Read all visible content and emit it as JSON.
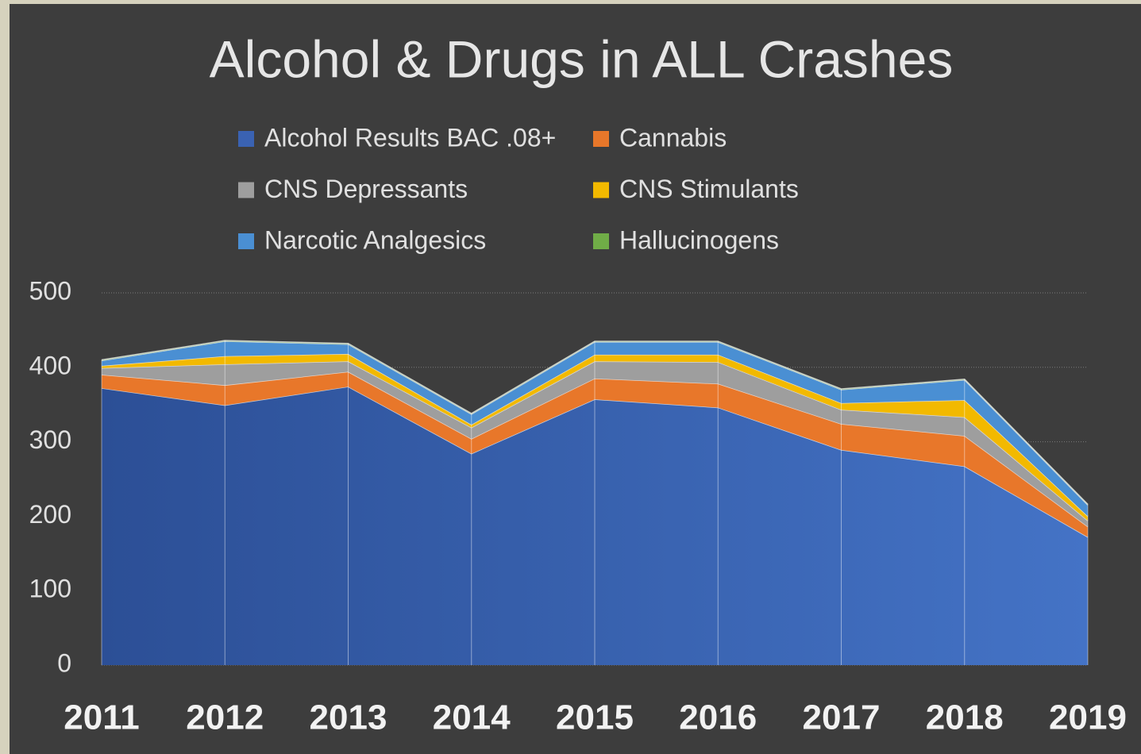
{
  "chart_data": {
    "type": "stacked_area",
    "title": "Alcohol & Drugs in ALL Crashes",
    "categories": [
      "2011",
      "2012",
      "2013",
      "2014",
      "2015",
      "2016",
      "2017",
      "2018",
      "2019"
    ],
    "series": [
      {
        "name": "Alcohol Results BAC .08+",
        "color": "#3a62b2",
        "values": [
          372,
          349,
          374,
          284,
          357,
          346,
          289,
          267,
          172
        ]
      },
      {
        "name": "Cannabis",
        "color": "#e8772a",
        "values": [
          18,
          27,
          20,
          20,
          28,
          32,
          35,
          41,
          14
        ]
      },
      {
        "name": "CNS Depressants",
        "color": "#9e9e9e",
        "values": [
          9,
          28,
          14,
          15,
          23,
          29,
          19,
          25,
          8
        ]
      },
      {
        "name": "CNS Stimulants",
        "color": "#f2b900",
        "values": [
          3,
          11,
          10,
          4,
          9,
          10,
          9,
          23,
          6
        ]
      },
      {
        "name": "Narcotic Analgesics",
        "color": "#4a8fd3",
        "values": [
          7,
          20,
          13,
          14,
          17,
          17,
          18,
          27,
          15
        ]
      },
      {
        "name": "Hallucinogens",
        "color": "#70ad47",
        "values": [
          1,
          1,
          1,
          1,
          1,
          1,
          1,
          1,
          1
        ]
      }
    ],
    "ylim": [
      0,
      500
    ],
    "yticks": [
      0,
      100,
      200,
      300,
      400,
      500
    ],
    "grid": true,
    "legend": "top"
  }
}
